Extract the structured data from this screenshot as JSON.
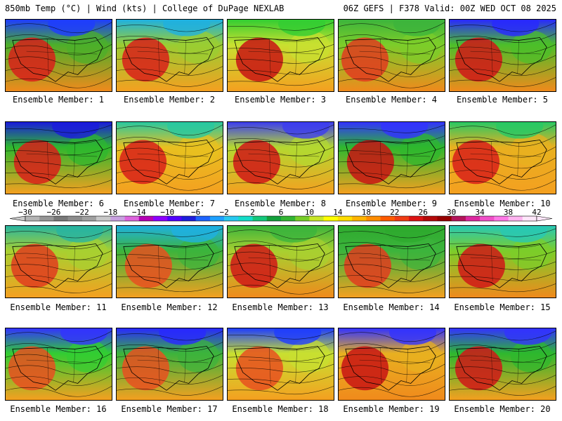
{
  "header": {
    "left": "850mb Temp (°C) | Wind (kts) | College of DuPage NEXLAB",
    "right": "06Z GEFS | F378 Valid: 00Z WED OCT 08 2025"
  },
  "panels": [
    {
      "label": "Ensemble Member: 1",
      "north_color": "#1e3cff",
      "west_color": "#d8201a",
      "east_color": "#4caf2a",
      "south_color": "#f08a1c"
    },
    {
      "label": "Ensemble Member: 2",
      "north_color": "#1fb0e0",
      "west_color": "#d8201a",
      "east_color": "#9acd32",
      "south_color": "#f4a020"
    },
    {
      "label": "Ensemble Member: 3",
      "north_color": "#32cd32",
      "west_color": "#c81414",
      "east_color": "#c8e030",
      "south_color": "#f4a020"
    },
    {
      "label": "Ensemble Member: 4",
      "north_color": "#3cb43c",
      "west_color": "#e03c1e",
      "east_color": "#7ccd2a",
      "south_color": "#f08a1c"
    },
    {
      "label": "Ensemble Member: 5",
      "north_color": "#2828ff",
      "west_color": "#d01818",
      "east_color": "#4cbf2a",
      "south_color": "#f08a1c"
    },
    {
      "label": "Ensemble Member: 6",
      "north_color": "#1a1adc",
      "west_color": "#d8201a",
      "east_color": "#2eb82e",
      "south_color": "#f4a020"
    },
    {
      "label": "Ensemble Member: 7",
      "north_color": "#28c8a0",
      "west_color": "#d8201a",
      "east_color": "#e8c020",
      "south_color": "#f4a020"
    },
    {
      "label": "Ensemble Member: 8",
      "north_color": "#3c3cf0",
      "west_color": "#d01818",
      "east_color": "#b4d830",
      "south_color": "#f4a020"
    },
    {
      "label": "Ensemble Member: 9",
      "north_color": "#3232ff",
      "west_color": "#c81414",
      "east_color": "#2eb82e",
      "south_color": "#f4a020"
    },
    {
      "label": "Ensemble Member: 10",
      "north_color": "#28c864",
      "west_color": "#d8201a",
      "east_color": "#e8b020",
      "south_color": "#f4a020"
    },
    {
      "label": "Ensemble Member: 11",
      "north_color": "#28b4a0",
      "west_color": "#e03c1e",
      "east_color": "#a8d030",
      "south_color": "#f4a020"
    },
    {
      "label": "Ensemble Member: 12",
      "north_color": "#1fb0e0",
      "west_color": "#e85020",
      "east_color": "#3cb43c",
      "south_color": "#f4a020"
    },
    {
      "label": "Ensemble Member: 13",
      "north_color": "#3cb43c",
      "west_color": "#d01818",
      "east_color": "#a8d030",
      "south_color": "#f08a1c"
    },
    {
      "label": "Ensemble Member: 14",
      "north_color": "#2eaa2e",
      "west_color": "#e03c1e",
      "east_color": "#3cb43c",
      "south_color": "#f4a020"
    },
    {
      "label": "Ensemble Member: 15",
      "north_color": "#28c8b4",
      "west_color": "#d01818",
      "east_color": "#7ccd2a",
      "south_color": "#f08a1c"
    },
    {
      "label": "Ensemble Member: 16",
      "north_color": "#3232ff",
      "west_color": "#e85020",
      "east_color": "#32cd32",
      "south_color": "#f4a020"
    },
    {
      "label": "Ensemble Member: 17",
      "north_color": "#2828ff",
      "west_color": "#e85020",
      "east_color": "#3cb43c",
      "south_color": "#f4a020"
    },
    {
      "label": "Ensemble Member: 18",
      "north_color": "#1e3cff",
      "west_color": "#e85020",
      "east_color": "#c8e030",
      "south_color": "#f4a020"
    },
    {
      "label": "Ensemble Member: 19",
      "north_color": "#3232ff",
      "west_color": "#c81414",
      "east_color": "#e8b020",
      "south_color": "#f08a1c"
    },
    {
      "label": "Ensemble Member: 20",
      "north_color": "#3232ff",
      "west_color": "#d01818",
      "east_color": "#2eb82e",
      "south_color": "#f4a020"
    }
  ],
  "colorbar": {
    "ticks": [
      "−30",
      "−26",
      "−22",
      "−18",
      "−14",
      "−10",
      "−6",
      "−2",
      "2",
      "6",
      "10",
      "14",
      "18",
      "22",
      "26",
      "30",
      "34",
      "38",
      "42"
    ],
    "colors": [
      "#b4b4b4",
      "#969696",
      "#787878",
      "#8c8c8c",
      "#a0a0a0",
      "#c8c8c8",
      "#c8a0e0",
      "#dc64dc",
      "#b400b4",
      "#8c00ff",
      "#5000ff",
      "#1e1edc",
      "#1e64ff",
      "#1ea0ff",
      "#28c8f0",
      "#14dcc8",
      "#14c87c",
      "#14a03c",
      "#32b432",
      "#78cd28",
      "#c8e628",
      "#ffff00",
      "#ffdc00",
      "#ffb400",
      "#ff8c00",
      "#ff5a00",
      "#f03c14",
      "#dc1414",
      "#b40a0a",
      "#960000",
      "#b4145a",
      "#dc28a0",
      "#f050c8",
      "#ff78e6",
      "#ffb4f0",
      "#ffe6fa"
    ]
  }
}
